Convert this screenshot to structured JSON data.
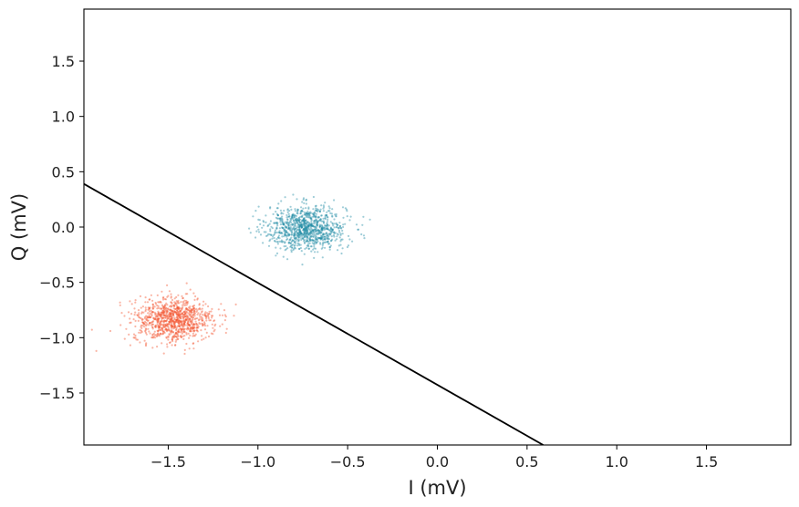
{
  "chart_data": {
    "type": "scatter",
    "title": "",
    "xlabel": "I (mV)",
    "ylabel": "Q (mV)",
    "xlim": [
      -1.97,
      1.97
    ],
    "ylim": [
      -1.97,
      1.97
    ],
    "xticks": [
      -1.5,
      -1.0,
      -0.5,
      0.0,
      0.5,
      1.0,
      1.5
    ],
    "xtick_labels": [
      "−1.5",
      "−1.0",
      "−0.5",
      "0.0",
      "0.5",
      "1.0",
      "1.5"
    ],
    "yticks": [
      -1.5,
      -1.0,
      -0.5,
      0.0,
      0.5,
      1.0,
      1.5
    ],
    "ytick_labels": [
      "−1.5",
      "−1.0",
      "−0.5",
      "0.0",
      "0.5",
      "1.0",
      "1.5"
    ],
    "grid": false,
    "legend": "none",
    "series": [
      {
        "color": "#1a87a3",
        "center": [
          -0.73,
          -0.01
        ],
        "spread": [
          0.11,
          0.1
        ],
        "n_points": 1000
      },
      {
        "color": "#f2502a",
        "center": [
          -1.47,
          -0.84
        ],
        "spread": [
          0.11,
          0.1
        ],
        "n_points": 1000
      }
    ],
    "decision_boundary": {
      "color": "#000000",
      "x": [
        -1.97,
        0.59
      ],
      "y": [
        0.39,
        -1.97
      ]
    }
  }
}
